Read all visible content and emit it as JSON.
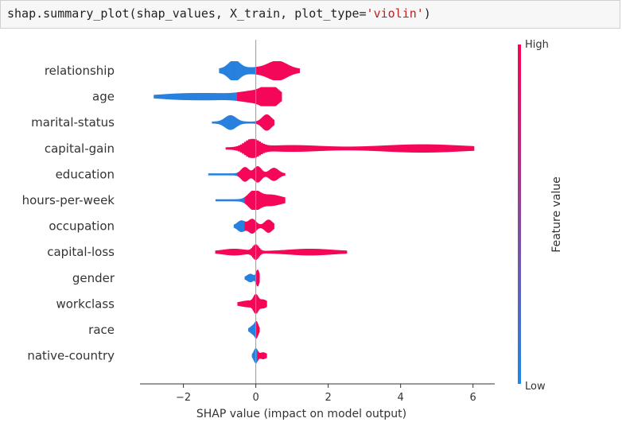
{
  "code": {
    "prefix": "shap.summary_plot(shap_values, X_train, plot_type=",
    "string_arg": "'violin'",
    "suffix": ")"
  },
  "colors": {
    "high": "#ff0052",
    "low": "#1e88e5",
    "zero_line": "#999999",
    "axis": "#333333"
  },
  "chart_data": {
    "type": "violin",
    "xlabel": "SHAP value (impact on model output)",
    "xlim": [
      -3.2,
      6.6
    ],
    "xticks": [
      -2,
      0,
      2,
      4,
      6
    ],
    "colorbar": {
      "label": "Feature value",
      "high_label": "High",
      "low_label": "Low"
    },
    "features": [
      {
        "name": "relationship",
        "min": -1.0,
        "max": 1.2,
        "blobs": [
          [
            -0.6,
            10,
            0.15
          ],
          [
            0.6,
            9,
            0.25
          ],
          [
            0.0,
            3,
            0.9
          ]
        ],
        "lowBelow": 0.0
      },
      {
        "name": "age",
        "min": -2.8,
        "max": 0.7,
        "blobs": [
          [
            -2.2,
            2,
            0.5
          ],
          [
            -1.2,
            3,
            0.6
          ],
          [
            0.4,
            11,
            0.2
          ],
          [
            0.0,
            6,
            0.4
          ]
        ],
        "lowBelow": -0.5
      },
      {
        "name": "marital-status",
        "min": -1.2,
        "max": 0.5,
        "blobs": [
          [
            -0.7,
            8,
            0.15
          ],
          [
            0.3,
            9,
            0.12
          ]
        ],
        "lowBelow": 0.0
      },
      {
        "name": "capital-gain",
        "min": -0.8,
        "max": 6.0,
        "blobs": [
          [
            -0.1,
            10,
            0.2
          ],
          [
            1.0,
            3,
            0.8
          ],
          [
            4.6,
            4,
            1.1
          ]
        ],
        "lowBelow": -10
      },
      {
        "name": "education",
        "min": -1.3,
        "max": 0.8,
        "blobs": [
          [
            -0.3,
            8,
            0.1
          ],
          [
            0.05,
            9,
            0.1
          ],
          [
            0.5,
            7,
            0.12
          ]
        ],
        "lowBelow": -0.5
      },
      {
        "name": "hours-per-week",
        "min": -1.1,
        "max": 0.8,
        "blobs": [
          [
            -0.05,
            10,
            0.15
          ],
          [
            0.4,
            6,
            0.3
          ]
        ],
        "lowBelow": -0.3
      },
      {
        "name": "occupation",
        "min": -0.6,
        "max": 0.5,
        "blobs": [
          [
            -0.4,
            6,
            0.1
          ],
          [
            -0.1,
            8,
            0.1
          ],
          [
            0.35,
            7,
            0.1
          ]
        ],
        "lowBelow": -0.3
      },
      {
        "name": "capital-loss",
        "min": -1.1,
        "max": 2.5,
        "blobs": [
          [
            0.0,
            8,
            0.08
          ],
          [
            -0.6,
            3,
            0.3
          ],
          [
            1.5,
            3,
            0.6
          ]
        ],
        "lowBelow": -10
      },
      {
        "name": "gender",
        "min": -0.3,
        "max": 0.1,
        "blobs": [
          [
            -0.15,
            4,
            0.08
          ],
          [
            0.05,
            9,
            0.04
          ]
        ],
        "lowBelow": 0.0
      },
      {
        "name": "workclass",
        "min": -0.5,
        "max": 0.3,
        "blobs": [
          [
            0.0,
            9,
            0.06
          ],
          [
            -0.2,
            3,
            0.2
          ],
          [
            0.2,
            4,
            0.1
          ]
        ],
        "lowBelow": -10
      },
      {
        "name": "race",
        "min": -0.2,
        "max": 0.1,
        "blobs": [
          [
            -0.05,
            5,
            0.08
          ],
          [
            0.02,
            6,
            0.04
          ]
        ],
        "lowBelow": 0.0
      },
      {
        "name": "native-country",
        "min": -0.1,
        "max": 0.3,
        "blobs": [
          [
            0.0,
            8,
            0.05
          ],
          [
            0.2,
            3,
            0.08
          ]
        ],
        "lowBelow": 0.05
      }
    ]
  }
}
